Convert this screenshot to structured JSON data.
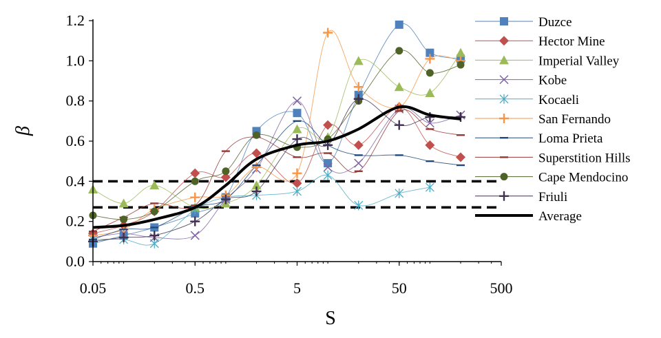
{
  "chart_data": {
    "type": "line",
    "title": "",
    "xlabel": "S",
    "ylabel": "β",
    "x_scale": "log",
    "xlim": [
      0.05,
      500
    ],
    "ylim": [
      0,
      1.2
    ],
    "x_ticks": [
      "0.05",
      "0.5",
      "5",
      "50",
      "500"
    ],
    "y_ticks": [
      "0.0",
      "0.2",
      "0.4",
      "0.6",
      "0.8",
      "1.0",
      "1.2"
    ],
    "grid": false,
    "legend_position": "right",
    "x": [
      0.05,
      0.1,
      0.2,
      0.5,
      1,
      2,
      5,
      10,
      20,
      50,
      100,
      200
    ],
    "series": [
      {
        "name": "Duzce",
        "color": "#4F81BD",
        "marker": "square",
        "values": [
          0.09,
          0.13,
          0.17,
          0.24,
          0.32,
          0.65,
          0.74,
          0.49,
          0.83,
          1.18,
          1.04,
          1.01
        ]
      },
      {
        "name": "Hector Mine",
        "color": "#C0504D",
        "marker": "diamond",
        "values": [
          0.14,
          0.18,
          0.25,
          0.44,
          0.42,
          0.54,
          0.39,
          0.68,
          0.58,
          0.77,
          0.58,
          0.52
        ]
      },
      {
        "name": "Imperial Valley",
        "color": "#9BBB59",
        "marker": "triangle",
        "values": [
          0.36,
          0.29,
          0.38,
          0.27,
          0.29,
          0.38,
          0.66,
          0.62,
          1.0,
          0.87,
          0.84,
          1.04
        ]
      },
      {
        "name": "Kobe",
        "color": "#8064A2",
        "marker": "x",
        "values": [
          0.12,
          0.14,
          0.12,
          0.13,
          0.31,
          0.46,
          0.8,
          0.47,
          0.49,
          0.76,
          0.69,
          0.73
        ]
      },
      {
        "name": "Kocaeli",
        "color": "#4BACC6",
        "marker": "asterisk",
        "values": [
          0.11,
          0.11,
          0.09,
          0.26,
          0.32,
          0.33,
          0.35,
          0.43,
          0.28,
          0.34,
          0.37,
          null
        ]
      },
      {
        "name": "San Fernando",
        "color": "#F79646",
        "marker": "plus",
        "values": [
          0.13,
          0.16,
          0.26,
          0.32,
          0.33,
          0.47,
          0.44,
          1.14,
          0.87,
          0.77,
          1.01,
          1.0
        ]
      },
      {
        "name": "Loma Prieta",
        "color": "#1F497D",
        "marker": "dash",
        "values": [
          0.11,
          0.16,
          0.17,
          0.27,
          0.31,
          0.48,
          0.7,
          0.58,
          0.53,
          0.53,
          0.5,
          0.48
        ]
      },
      {
        "name": "Superstition Hills",
        "color": "#943634",
        "marker": "dash",
        "values": [
          0.15,
          0.22,
          0.29,
          0.28,
          0.55,
          0.62,
          0.52,
          0.54,
          0.45,
          0.75,
          0.66,
          0.63
        ]
      },
      {
        "name": "Cape Mendocino",
        "color": "#4F6228",
        "marker": "circle",
        "values": [
          0.23,
          0.21,
          0.25,
          0.4,
          0.45,
          0.63,
          0.57,
          0.61,
          0.8,
          1.05,
          0.94,
          0.98
        ]
      },
      {
        "name": "Friuli",
        "color": "#403151",
        "marker": "plus",
        "values": [
          0.1,
          0.12,
          0.13,
          0.2,
          0.31,
          0.35,
          0.61,
          0.58,
          0.81,
          0.68,
          0.72,
          0.72
        ]
      },
      {
        "name": "Average",
        "color": "#000000",
        "marker": "none",
        "thick": true,
        "values": [
          0.17,
          0.18,
          0.21,
          0.27,
          0.38,
          0.51,
          0.58,
          0.6,
          0.66,
          0.77,
          0.73,
          0.71
        ]
      }
    ],
    "reference_lines": [
      {
        "style": "dashed",
        "y": 0.4
      },
      {
        "style": "dashed",
        "y": 0.27
      }
    ]
  }
}
